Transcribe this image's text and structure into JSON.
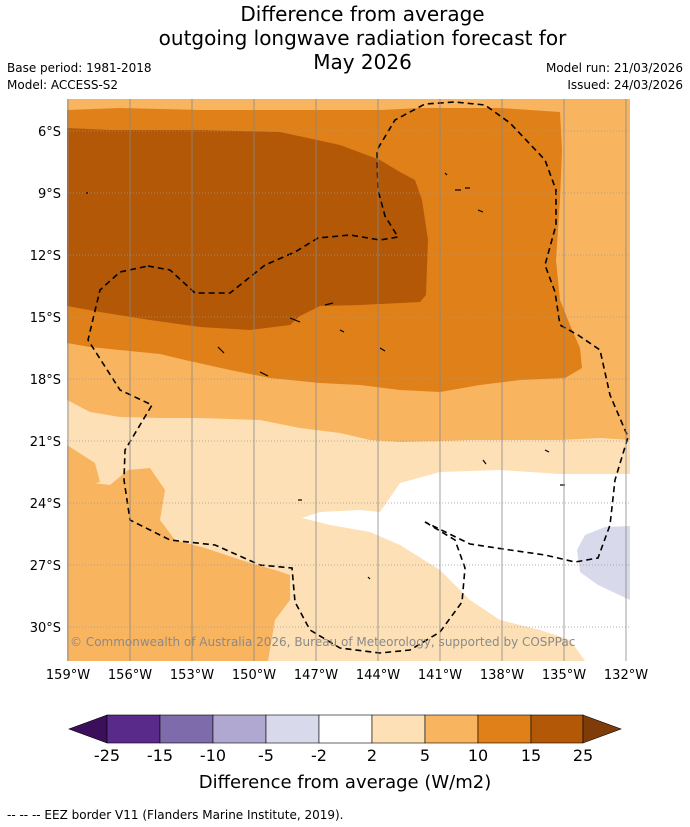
{
  "title": {
    "line1": "Difference from average",
    "line2": "outgoing longwave radiation forecast for",
    "line3": "May 2026"
  },
  "meta": {
    "base_period": "Base period: 1981-2018",
    "model": "Model: ACCESS-S2",
    "model_run": "Model run: 21/03/2026",
    "issued": "Issued: 24/03/2026"
  },
  "map": {
    "lat_labels": [
      "6°S",
      "9°S",
      "12°S",
      "15°S",
      "18°S",
      "21°S",
      "24°S",
      "27°S",
      "30°S"
    ],
    "lon_labels": [
      "159°W",
      "156°W",
      "153°W",
      "150°W",
      "147°W",
      "144°W",
      "141°W",
      "138°W",
      "135°W",
      "132°W"
    ],
    "copyright": "© Commonwealth of Australia 2026, Bureau of Meteorology, supported by COSPPac",
    "colors": {
      "lt_minus25": "#3b0f5c",
      "m25_m15": "#5a2a8a",
      "m15_m10": "#7d6bab",
      "m10_m5": "#b0a8d1",
      "m5_m2": "#d9d9ec",
      "m2_2": "#ffffff",
      "p2_5": "#fde0b6",
      "p5_10": "#f9b460",
      "p10_15": "#e08019",
      "p15_25": "#b35806",
      "gt_25": "#7f3b08"
    }
  },
  "colorbar": {
    "ticks": [
      "-25",
      "-15",
      "-10",
      "-5",
      "-2",
      "2",
      "5",
      "10",
      "15",
      "25"
    ],
    "title": "Difference from average (W/m2)"
  },
  "footer": {
    "legend_text": "--  --  -- EEZ border V11 (Flanders Marine Institute, 2019)."
  }
}
